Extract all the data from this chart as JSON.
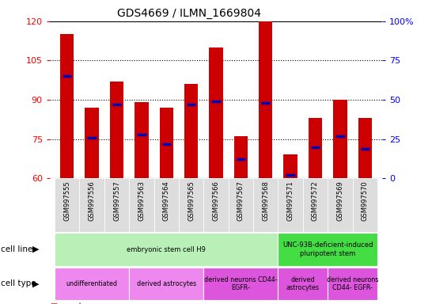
{
  "title": "GDS4669 / ILMN_1669804",
  "samples": [
    "GSM997555",
    "GSM997556",
    "GSM997557",
    "GSM997563",
    "GSM997564",
    "GSM997565",
    "GSM997566",
    "GSM997567",
    "GSM997568",
    "GSM997571",
    "GSM997572",
    "GSM997569",
    "GSM997570"
  ],
  "count_values": [
    115,
    87,
    97,
    89,
    87,
    96,
    110,
    76,
    120,
    69,
    83,
    90,
    83
  ],
  "percentile_values": [
    65,
    26,
    47,
    28,
    22,
    47,
    49,
    12,
    48,
    2,
    20,
    27,
    19
  ],
  "ylim_left": [
    60,
    120
  ],
  "ylim_right": [
    0,
    100
  ],
  "yticks_left": [
    60,
    75,
    90,
    105,
    120
  ],
  "yticks_right": [
    0,
    25,
    50,
    75,
    100
  ],
  "ytick_labels_right": [
    "0",
    "25",
    "50",
    "75",
    "100%"
  ],
  "bar_color": "#cc0000",
  "percentile_color": "#0000bb",
  "cell_line_groups": [
    {
      "label": "embryonic stem cell H9",
      "start": 0,
      "end": 8,
      "color": "#b8f0b8"
    },
    {
      "label": "UNC-93B-deficient-induced\npluripotent stem",
      "start": 9,
      "end": 12,
      "color": "#44dd44"
    }
  ],
  "cell_type_groups": [
    {
      "label": "undifferentiated",
      "start": 0,
      "end": 2,
      "color": "#ee88ee"
    },
    {
      "label": "derived astrocytes",
      "start": 3,
      "end": 5,
      "color": "#ee88ee"
    },
    {
      "label": "derived neurons CD44-\nEGFR-",
      "start": 6,
      "end": 8,
      "color": "#dd55dd"
    },
    {
      "label": "derived\nastrocytes",
      "start": 9,
      "end": 10,
      "color": "#dd55dd"
    },
    {
      "label": "derived neurons\nCD44- EGFR-",
      "start": 11,
      "end": 12,
      "color": "#dd55dd"
    }
  ],
  "tick_bg_color": "#dddddd",
  "legend_count_color": "#cc0000",
  "legend_pct_color": "#0000bb",
  "grid_color": "black"
}
